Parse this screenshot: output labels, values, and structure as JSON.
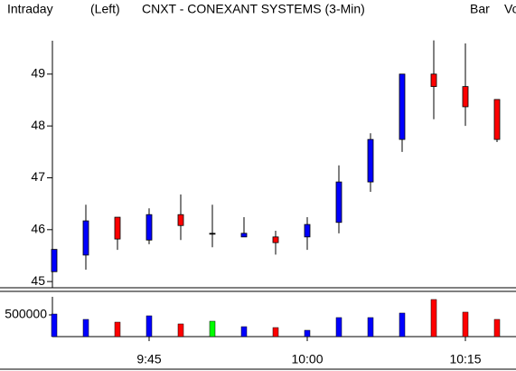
{
  "chart_data": {
    "type": "candlestick",
    "header": {
      "label": "Intraday",
      "side": "(Left)",
      "title": "CNXT - CONEXANT SYSTEMS (3-Min)",
      "style": "Bar",
      "indicator": "Vo"
    },
    "categories": [
      null,
      null,
      null,
      "9:45",
      null,
      null,
      null,
      null,
      "10:00",
      null,
      null,
      null,
      null,
      "10:15",
      null
    ],
    "open": [
      45.19,
      45.51,
      46.24,
      45.8,
      46.29,
      45.93,
      45.86,
      45.86,
      45.86,
      46.14,
      46.92,
      47.74,
      49.0,
      48.76,
      48.51
    ],
    "high": [
      45.62,
      46.48,
      46.24,
      46.41,
      46.68,
      46.48,
      46.24,
      45.98,
      46.24,
      47.24,
      47.86,
      49.0,
      49.65,
      49.59,
      48.51
    ],
    "low": [
      45.19,
      45.23,
      45.61,
      45.72,
      45.8,
      45.66,
      45.86,
      45.52,
      45.61,
      45.93,
      46.73,
      47.5,
      48.13,
      48.0,
      47.69
    ],
    "close": [
      45.62,
      46.17,
      45.82,
      46.29,
      46.08,
      45.93,
      45.93,
      45.75,
      46.1,
      46.92,
      47.74,
      49.0,
      48.76,
      48.37,
      47.74
    ],
    "ylim": [
      44.88,
      49.94
    ],
    "yticks": [
      45,
      46,
      47,
      48,
      49
    ],
    "up_color": "#0000ff",
    "down_color": "#ff0000",
    "doji_color": "#000000",
    "volume": {
      "values": [
        520000,
        396000,
        333000,
        479000,
        292000,
        354000,
        229000,
        208000,
        146000,
        438000,
        438000,
        542000,
        854000,
        563000,
        396000
      ],
      "ylim": [
        0,
        958000
      ],
      "yticks": [
        500000
      ],
      "flat_color": "#00ff00",
      "indicator_color": "#00c000"
    }
  }
}
